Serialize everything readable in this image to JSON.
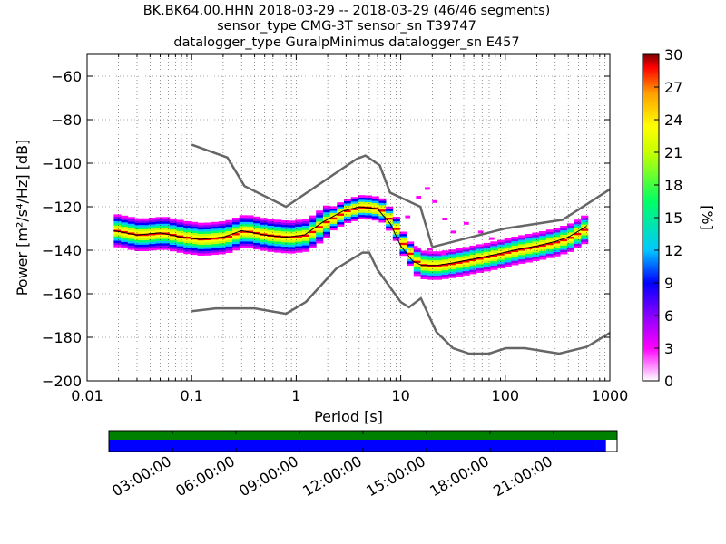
{
  "chart_data": {
    "type": "heatmap",
    "title_lines": [
      "BK.BK64.00.HHN   2018-03-29 -- 2018-03-29  (46/46 segments)",
      "sensor_type CMG-3T sensor_sn T39747",
      "datalogger_type GuralpMinimus datalogger_sn E457"
    ],
    "xlabel": "Period [s]",
    "ylabel": "Power [m²/s⁴/Hz] [dB]",
    "xscale": "log",
    "xlim": [
      0.01,
      1000
    ],
    "ylim": [
      -200,
      -50
    ],
    "x_ticks": [
      {
        "v": 0.01,
        "t": "0.01"
      },
      {
        "v": 0.1,
        "t": "0.1"
      },
      {
        "v": 1,
        "t": "1"
      },
      {
        "v": 10,
        "t": "10"
      },
      {
        "v": 100,
        "t": "100"
      },
      {
        "v": 1000,
        "t": "1000"
      }
    ],
    "y_ticks": [
      -200,
      -180,
      -160,
      -140,
      -120,
      -100,
      -80,
      -60
    ],
    "y_tick_labels": [
      "−200",
      "−180",
      "−160",
      "−140",
      "−120",
      "−100",
      "−80",
      "−60"
    ],
    "grid": "dotted",
    "colorbar": {
      "label": "[%]",
      "range": [
        0,
        30
      ],
      "ticks": [
        "0",
        "3",
        "6",
        "9",
        "12",
        "15",
        "18",
        "21",
        "24",
        "27",
        "30"
      ],
      "colormap": [
        "#ffffff",
        "#ff00ff",
        "#8a00ff",
        "#0000ff",
        "#00c8ff",
        "#00ff64",
        "#c8ff00",
        "#ffff00",
        "#ffa000",
        "#ff0000",
        "#800000"
      ]
    },
    "noise_models": [
      {
        "name": "NHNM",
        "x": [
          0.1,
          0.22,
          0.32,
          0.8,
          3.8,
          4.6,
          6.3,
          7.9,
          15.4,
          20
        ],
        "y": [
          -91.5,
          -97.4,
          -110.5,
          -120,
          -98,
          -96.5,
          -101,
          -113.5,
          -120,
          -138.5
        ]
      },
      {
        "name": "NHNM_long",
        "x": [
          20,
          100,
          354,
          1000
        ],
        "y": [
          -138.5,
          -130,
          -126,
          -112
        ]
      },
      {
        "name": "NLNM",
        "x": [
          0.1,
          0.17,
          0.4,
          0.8,
          1.24,
          2.4,
          4.3,
          5,
          6,
          10,
          12,
          15.6,
          21.9,
          31.6,
          45,
          70,
          101,
          154,
          328,
          600,
          1000
        ],
        "y": [
          -168,
          -166.7,
          -166.7,
          -169.2,
          -163.7,
          -148.6,
          -141.1,
          -141.1,
          -149,
          -163.8,
          -166.2,
          -162.1,
          -177.5,
          -185,
          -187.5,
          -187.5,
          -185,
          -185,
          -187.5,
          -184.4,
          -178
        ]
      }
    ],
    "mode_curve": {
      "x": [
        0.018,
        0.03,
        0.05,
        0.08,
        0.12,
        0.2,
        0.3,
        0.5,
        0.8,
        1.2,
        1.8,
        2.8,
        4,
        6,
        8,
        10,
        13,
        16,
        22,
        30,
        50,
        80,
        120,
        200,
        300,
        400,
        600
      ],
      "y": [
        -131,
        -133,
        -132,
        -134,
        -135,
        -134,
        -131,
        -133,
        -134,
        -133,
        -127,
        -122,
        -120,
        -121,
        -128,
        -138,
        -145,
        -147,
        -147,
        -146,
        -144,
        -142,
        -140,
        -138,
        -136,
        -134,
        -129
      ]
    },
    "time_axis": {
      "ticks": [
        "03:00:00",
        "06:00:00",
        "09:00:00",
        "12:00:00",
        "15:00:00",
        "18:00:00",
        "21:00:00"
      ],
      "data_coverage_fraction": 1.0,
      "psd_coverage_fraction": 0.978,
      "colors": {
        "data": "#008000",
        "psd": "#0000ff"
      }
    }
  }
}
